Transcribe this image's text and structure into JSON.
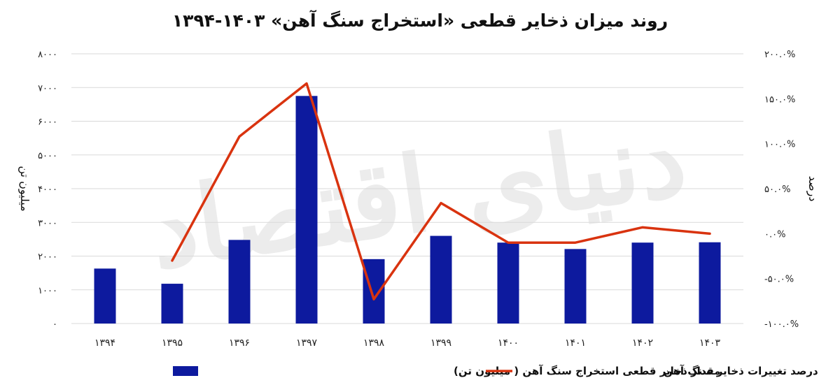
{
  "chart_data": {
    "type": "bar",
    "title": "روند میزان ذخایر قطعی «استخراج سنگ آهن» ۱۴۰۳-۱۳۹۴",
    "categories": [
      "۱۳۹۴",
      "۱۳۹۵",
      "۱۳۹۶",
      "۱۳۹۷",
      "۱۳۹۸",
      "۱۳۹۹",
      "۱۴۰۰",
      "۱۴۰۱",
      "۱۴۰۲",
      "۱۴۰۳"
    ],
    "ylabel": "میلیون تن",
    "y2label": "درصد",
    "ylim": [
      0,
      8000
    ],
    "y2lim": [
      -100,
      200
    ],
    "yticks": [
      "۰",
      "۱۰۰۰",
      "۲۰۰۰",
      "۳۰۰۰",
      "۴۰۰۰",
      "۵۰۰۰",
      "۶۰۰۰",
      "۷۰۰۰",
      "۸۰۰۰"
    ],
    "y2ticks": [
      "-۱۰۰.۰%",
      "-۵۰.۰%",
      "۰.۰%",
      "۵۰.۰%",
      "۱۰۰.۰%",
      "۱۵۰.۰%",
      "۲۰۰.۰%"
    ],
    "grid": true,
    "legend_position": "bottom",
    "series": [
      {
        "name": "مقدار ذخایر قطعی استخراج سنگ آهن ( میلیون تن)",
        "type": "bar",
        "axis": "left",
        "color": "#0d1a9e",
        "values": [
          1630,
          1180,
          2480,
          6750,
          1910,
          2600,
          2400,
          2210,
          2400,
          2410
        ]
      },
      {
        "name": "درصد تغییرات ذخایر سنگ آهن",
        "type": "line",
        "axis": "right",
        "color": "#d9330f",
        "values": [
          null,
          -30,
          108,
          167,
          -73,
          34,
          -10,
          -10,
          7,
          0
        ]
      }
    ],
    "watermark": "دنیای اقتصاد"
  }
}
